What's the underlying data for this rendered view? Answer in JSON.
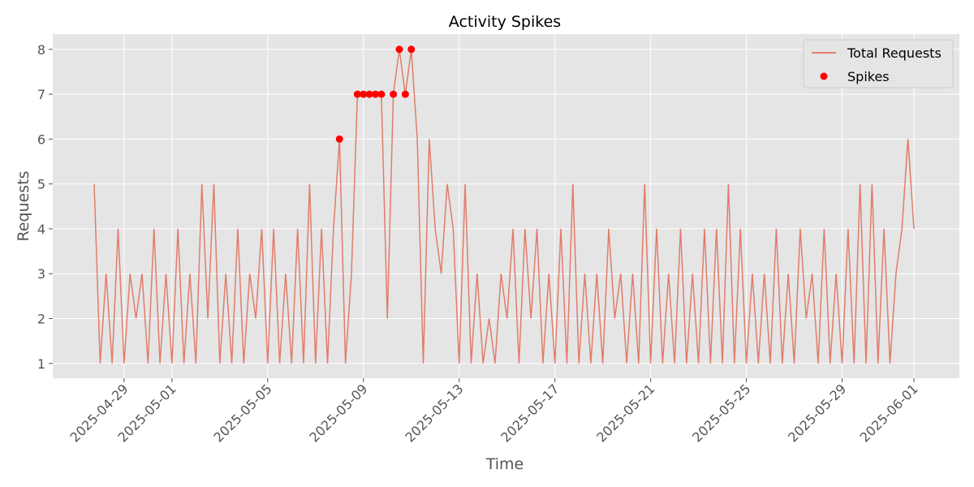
{
  "chart_data": {
    "type": "line",
    "title": "Activity Spikes",
    "xlabel": "Time",
    "ylabel": "Requests",
    "xlim": [
      20204.02,
      20241.9
    ],
    "ylim": [
      0.67,
      8.34
    ],
    "xticks": [
      {
        "value": 20207,
        "label": "2025-04-29"
      },
      {
        "value": 20209,
        "label": "2025-05-01"
      },
      {
        "value": 20213,
        "label": "2025-05-05"
      },
      {
        "value": 20217,
        "label": "2025-05-09"
      },
      {
        "value": 20221,
        "label": "2025-05-13"
      },
      {
        "value": 20225,
        "label": "2025-05-17"
      },
      {
        "value": 20229,
        "label": "2025-05-21"
      },
      {
        "value": 20233,
        "label": "2025-05-25"
      },
      {
        "value": 20237,
        "label": "2025-05-29"
      },
      {
        "value": 20240,
        "label": "2025-06-01"
      }
    ],
    "yticks": [
      1,
      2,
      3,
      4,
      5,
      6,
      7,
      8
    ],
    "grid": true,
    "legend": "upper right",
    "series": [
      {
        "name": "Total Requests",
        "type": "line",
        "color": "#e27c69",
        "x": [
          20205.75,
          20206,
          20206.25,
          20206.5,
          20206.75,
          20207,
          20207.25,
          20207.5,
          20207.75,
          20208,
          20208.25,
          20208.5,
          20208.75,
          20209,
          20209.25,
          20209.5,
          20209.75,
          20210,
          20210.25,
          20210.5,
          20210.75,
          20211,
          20211.25,
          20211.5,
          20211.75,
          20212,
          20212.25,
          20212.5,
          20212.75,
          20213,
          20213.25,
          20213.5,
          20213.75,
          20214,
          20214.25,
          20214.5,
          20214.75,
          20215,
          20215.25,
          20215.5,
          20215.75,
          20216,
          20216.25,
          20216.5,
          20216.75,
          20217,
          20217.25,
          20217.5,
          20217.75,
          20218,
          20218.25,
          20218.5,
          20218.75,
          20219,
          20219.25,
          20219.5,
          20219.75,
          20220,
          20220.25,
          20220.5,
          20220.75,
          20221,
          20221.25,
          20221.5,
          20221.75,
          20222,
          20222.25,
          20222.5,
          20222.75,
          20223,
          20223.25,
          20223.5,
          20223.75,
          20224,
          20224.25,
          20224.5,
          20224.75,
          20225,
          20225.25,
          20225.5,
          20225.75,
          20226,
          20226.25,
          20226.5,
          20226.75,
          20227,
          20227.25,
          20227.5,
          20227.75,
          20228,
          20228.25,
          20228.5,
          20228.75,
          20229,
          20229.25,
          20229.5,
          20229.75,
          20230,
          20230.25,
          20230.5,
          20230.75,
          20231,
          20231.25,
          20231.5,
          20231.75,
          20232,
          20232.25,
          20232.5,
          20232.75,
          20233,
          20233.25,
          20233.5,
          20233.75,
          20234,
          20234.25,
          20234.5,
          20234.75,
          20235,
          20235.25,
          20235.5,
          20235.75,
          20236,
          20236.25,
          20236.5,
          20236.75,
          20237,
          20237.25,
          20237.5,
          20237.75,
          20238,
          20238.25,
          20238.5,
          20238.75,
          20239,
          20239.25,
          20239.5,
          20239.75,
          20240
        ],
        "values": [
          5,
          1,
          3,
          1,
          4,
          1,
          3,
          2,
          3,
          1,
          4,
          1,
          3,
          1,
          4,
          1,
          3,
          1,
          5,
          2,
          5,
          1,
          3,
          1,
          4,
          1,
          3,
          2,
          4,
          1,
          4,
          1,
          3,
          1,
          4,
          1,
          5,
          1,
          4,
          1,
          4,
          6,
          1,
          3,
          7,
          7,
          7,
          7,
          7,
          2,
          7,
          8,
          7,
          8,
          6,
          1,
          6,
          4,
          3,
          5,
          4,
          1,
          5,
          1,
          3,
          1,
          2,
          1,
          3,
          2,
          4,
          1,
          4,
          2,
          4,
          1,
          3,
          1,
          4,
          1,
          5,
          1,
          3,
          1,
          3,
          1,
          4,
          2,
          3,
          1,
          3,
          1,
          5,
          1,
          4,
          1,
          3,
          1,
          4,
          1,
          3,
          1,
          4,
          1,
          4,
          1,
          5,
          1,
          4,
          1,
          3,
          1,
          3,
          1,
          4,
          1,
          3,
          1,
          4,
          2,
          3,
          1,
          4,
          1,
          3,
          1,
          4,
          1,
          5,
          1,
          5,
          1,
          4,
          1,
          3,
          4,
          6,
          4
        ]
      },
      {
        "name": "Spikes",
        "type": "scatter",
        "color": "#ff0000",
        "x": [
          20216,
          20216.75,
          20217,
          20217.25,
          20217.5,
          20217.75,
          20218.25,
          20218.5,
          20218.75,
          20219
        ],
        "values": [
          6,
          7,
          7,
          7,
          7,
          7,
          7,
          8,
          7,
          8
        ]
      }
    ]
  }
}
